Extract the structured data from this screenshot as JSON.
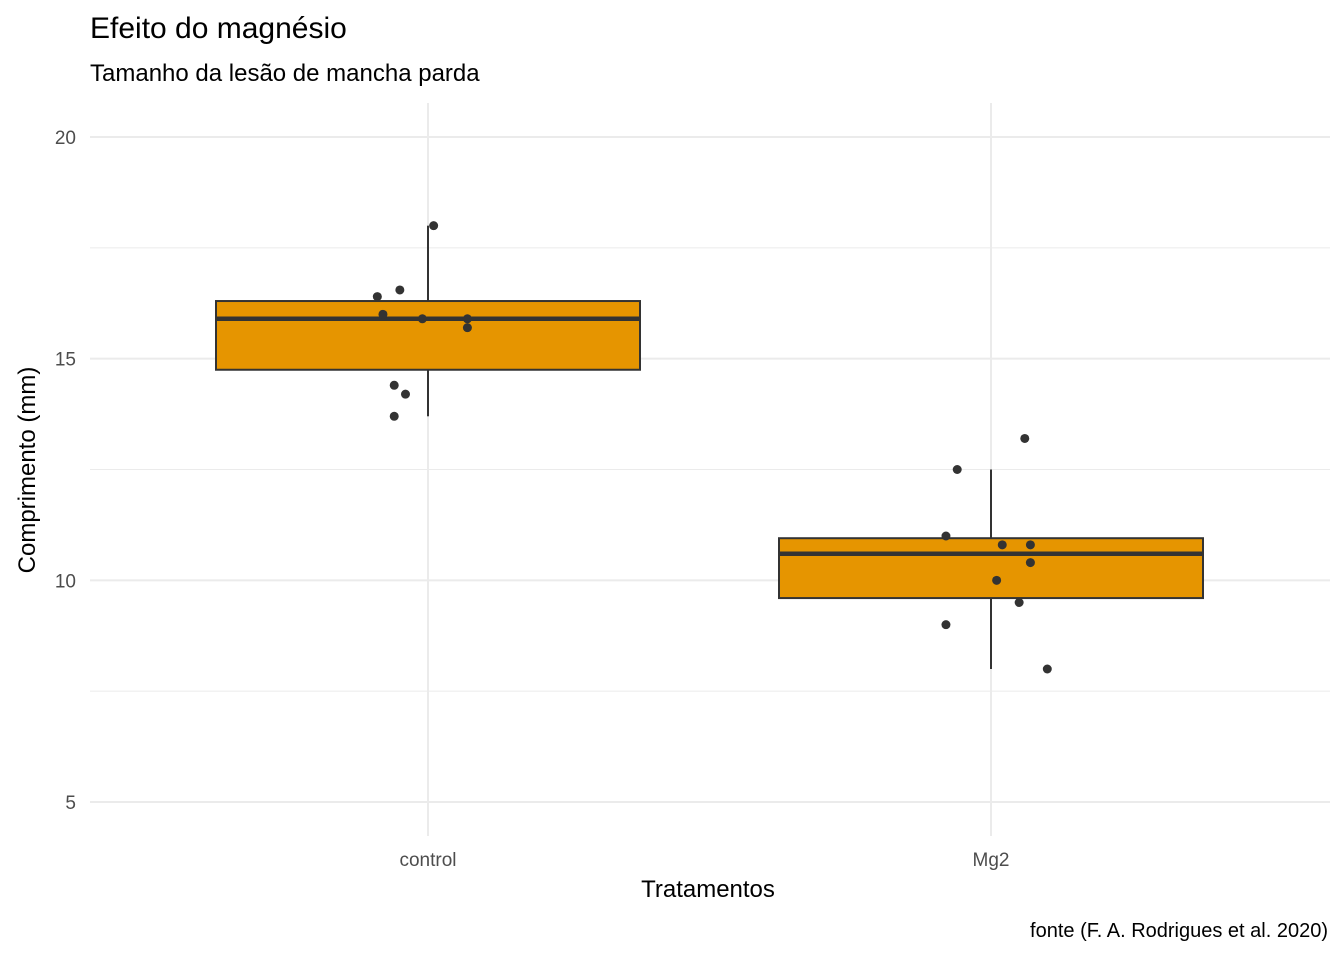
{
  "chart": {
    "title": "Efeito do magnésio",
    "subtitle": "Tamanho da lesão de mancha parda",
    "xlabel": "Tratamentos",
    "ylabel": "Comprimento (mm)",
    "caption": "fonte (F. A. Rodrigues et al. 2020)"
  },
  "colors": {
    "box_fill": "#E69500",
    "box_line": "#333333",
    "point": "#333333",
    "grid": "#EBEBEB"
  },
  "chart_data": {
    "type": "boxplot",
    "title": "Efeito do magnésio",
    "subtitle": "Tamanho da lesão de mancha parda",
    "xlabel": "Tratamentos",
    "ylabel": "Comprimento (mm)",
    "caption": "fonte (F. A. Rodrigues et al. 2020)",
    "categories": [
      "control",
      "Mg2"
    ],
    "yticks": [
      5,
      10,
      15,
      20
    ],
    "ylim": [
      4.2,
      20.8
    ],
    "grid": true,
    "boxes": [
      {
        "name": "control",
        "whisker_low": 13.7,
        "q1": 14.75,
        "median": 15.9,
        "q3": 16.3,
        "whisker_high": 18.0
      },
      {
        "name": "Mg2",
        "whisker_low": 8.0,
        "q1": 9.6,
        "median": 10.6,
        "q3": 10.95,
        "whisker_high": 12.5
      }
    ],
    "points": [
      {
        "name": "control",
        "jitter": [
          0.01,
          -0.09,
          -0.05,
          -0.08,
          -0.01,
          0.07,
          0.07,
          -0.06,
          -0.04,
          -0.06
        ],
        "values": [
          18.0,
          16.4,
          16.55,
          16.0,
          15.9,
          15.9,
          15.7,
          14.4,
          14.2,
          13.7
        ]
      },
      {
        "name": "Mg2",
        "jitter": [
          0.06,
          -0.06,
          -0.08,
          0.02,
          0.07,
          0.07,
          0.01,
          0.05,
          -0.08,
          0.1
        ],
        "values": [
          13.2,
          12.5,
          11.0,
          10.8,
          10.8,
          10.4,
          10.0,
          9.5,
          9.0,
          8.0
        ]
      }
    ]
  }
}
